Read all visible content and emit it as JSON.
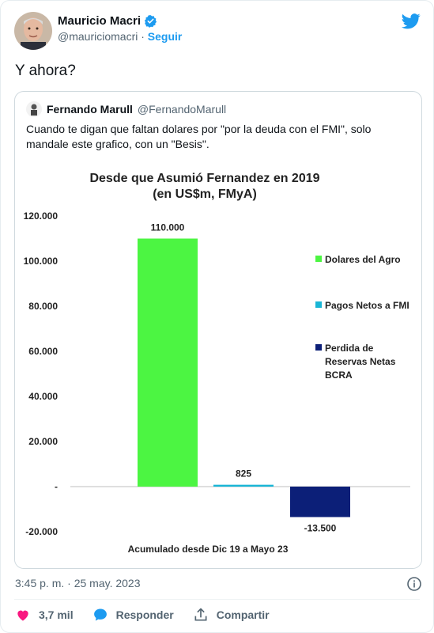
{
  "author": {
    "name": "Mauricio Macri",
    "handle": "@mauriciomacri",
    "separator": "·",
    "follow_label": "Seguir"
  },
  "tweet_text": "Y ahora?",
  "quoted": {
    "name": "Fernando Marull",
    "handle": "@FernandoMarull",
    "text": "Cuando te digan que faltan dolares por \"por la deuda con el FMI\", solo mandale este grafico, con un \"Besis\"."
  },
  "chart_data": {
    "type": "bar",
    "title": "Desde que Asumió  Fernandez en 2019",
    "subtitle": "(en US$m, FMyA)",
    "xlabel": "Acumulado desde Dic 19 a Mayo 23",
    "ylabel": "",
    "ylim": [
      -20000,
      120000
    ],
    "ytick_labels": [
      "120.000",
      "100.000",
      "80.000",
      "60.000",
      "40.000",
      "20.000",
      "-",
      "-20.000"
    ],
    "ytick_values": [
      120000,
      100000,
      80000,
      60000,
      40000,
      20000,
      0,
      -20000
    ],
    "grid": false,
    "legend_position": "right",
    "series": [
      {
        "name": "Dolares del Agro",
        "value": 110000,
        "label": "110.000",
        "color": "#4cf542"
      },
      {
        "name": "Pagos Netos a FMI",
        "value": 825,
        "label": "825",
        "color": "#19b6d6"
      },
      {
        "name": "Perdida de Reservas Netas BCRA",
        "value": -13500,
        "label": "-13.500",
        "color": "#0c1f78"
      }
    ]
  },
  "footer": {
    "timestamp": "3:45 p. m. · 25 may. 2023"
  },
  "actions": {
    "likes": "3,7 mil",
    "reply_label": "Responder",
    "share_label": "Compartir"
  },
  "colors": {
    "accent": "#1d9bf0",
    "like": "#f91880",
    "text": "#0f1419",
    "muted": "#536471"
  },
  "icons": [
    "verified-badge-icon",
    "twitter-bird-icon",
    "info-icon",
    "heart-icon",
    "speech-bubble-icon",
    "share-icon"
  ]
}
